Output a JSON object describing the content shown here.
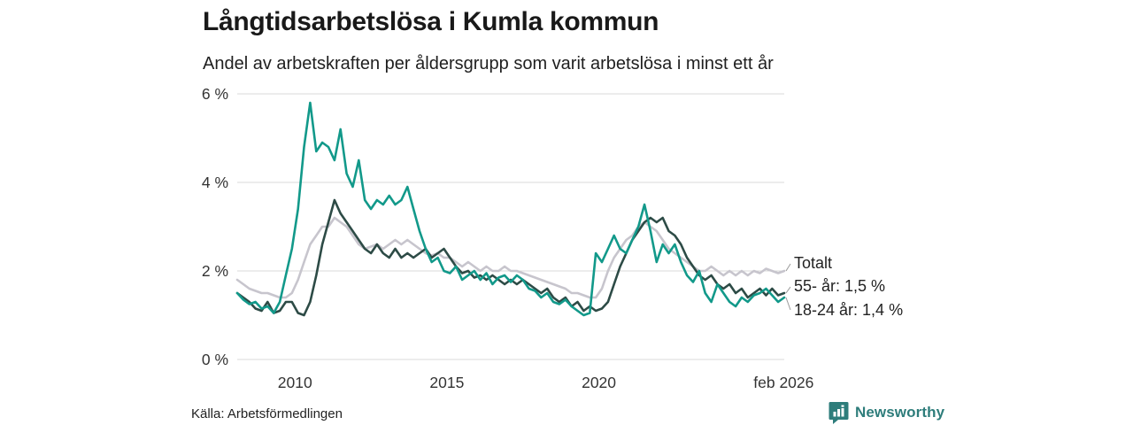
{
  "header": {
    "title": "Långtidsarbetslösa i Kumla kommun",
    "subtitle": "Andel av arbetskraften per åldersgrupp som varit arbetslösa i minst ett år"
  },
  "chart_data": {
    "type": "line",
    "title": "Långtidsarbetslösa i Kumla kommun",
    "subtitle": "Andel av arbetskraften per åldersgrupp som varit arbetslösa i minst ett år",
    "x_unit": "decimal_year",
    "x_start": 2008.1,
    "x_step": 0.2,
    "x_end": 2026.1,
    "ylim": [
      0,
      6
    ],
    "grid": "horizontal",
    "gridline_color": "#d8d8d8",
    "yticks": [
      {
        "value": 0,
        "label": "0 %"
      },
      {
        "value": 2,
        "label": "2 %"
      },
      {
        "value": 4,
        "label": "4 %"
      },
      {
        "value": 6,
        "label": "6 %"
      }
    ],
    "xticks": [
      {
        "value": 2010,
        "label": "2010"
      },
      {
        "value": 2015,
        "label": "2015"
      },
      {
        "value": 2020,
        "label": "2020"
      },
      {
        "value": 2026.08,
        "label": "feb 2026"
      }
    ],
    "legend_position": "right-of-line-ends",
    "series": [
      {
        "name": "Totalt",
        "end_label": "Totalt",
        "color": "#c7c5cd",
        "values": [
          1.8,
          1.7,
          1.6,
          1.55,
          1.5,
          1.5,
          1.45,
          1.4,
          1.4,
          1.5,
          1.8,
          2.2,
          2.6,
          2.8,
          3.0,
          3.0,
          3.2,
          3.1,
          3.0,
          2.8,
          2.6,
          2.5,
          2.55,
          2.6,
          2.5,
          2.6,
          2.7,
          2.6,
          2.7,
          2.6,
          2.5,
          2.4,
          2.35,
          2.4,
          2.3,
          2.3,
          2.2,
          2.1,
          2.2,
          2.1,
          2.0,
          2.1,
          2.0,
          2.0,
          2.1,
          2.0,
          2.0,
          1.95,
          1.9,
          1.85,
          1.8,
          1.75,
          1.7,
          1.65,
          1.6,
          1.5,
          1.5,
          1.45,
          1.4,
          1.4,
          1.6,
          2.0,
          2.3,
          2.5,
          2.7,
          2.8,
          3.0,
          3.1,
          3.0,
          2.9,
          2.7,
          2.5,
          2.4,
          2.3,
          2.2,
          2.1,
          2.0,
          2.0,
          2.1,
          2.0,
          1.9,
          2.0,
          1.9,
          2.0,
          1.9,
          2.0,
          1.95,
          2.05,
          2.0,
          1.95,
          2.0
        ]
      },
      {
        "name": "55- år",
        "end_label": "55- år: 1,5 %",
        "end_value_label": "1,5 %",
        "color": "#2d4b46",
        "values": [
          1.5,
          1.4,
          1.3,
          1.15,
          1.1,
          1.3,
          1.05,
          1.1,
          1.3,
          1.3,
          1.05,
          1.0,
          1.3,
          1.9,
          2.6,
          3.1,
          3.6,
          3.3,
          3.1,
          2.9,
          2.7,
          2.5,
          2.4,
          2.6,
          2.4,
          2.3,
          2.5,
          2.3,
          2.4,
          2.3,
          2.4,
          2.5,
          2.3,
          2.4,
          2.5,
          2.3,
          2.1,
          1.95,
          2.0,
          1.85,
          1.9,
          1.8,
          1.9,
          1.8,
          1.7,
          1.8,
          1.7,
          1.8,
          1.7,
          1.6,
          1.5,
          1.6,
          1.4,
          1.3,
          1.4,
          1.2,
          1.3,
          1.1,
          1.2,
          1.1,
          1.15,
          1.3,
          1.7,
          2.1,
          2.4,
          2.7,
          2.9,
          3.1,
          3.2,
          3.1,
          3.2,
          2.9,
          2.8,
          2.6,
          2.3,
          2.1,
          1.9,
          1.8,
          1.9,
          1.7,
          1.6,
          1.7,
          1.5,
          1.6,
          1.4,
          1.5,
          1.6,
          1.45,
          1.6,
          1.45,
          1.5
        ]
      },
      {
        "name": "18-24 år",
        "end_label": "18-24 år: 1,4 %",
        "end_value_label": "1,4 %",
        "color": "#12998a",
        "values": [
          1.5,
          1.35,
          1.25,
          1.3,
          1.15,
          1.2,
          1.05,
          1.3,
          1.9,
          2.5,
          3.4,
          4.8,
          5.8,
          4.7,
          4.9,
          4.8,
          4.5,
          5.2,
          4.2,
          3.9,
          4.5,
          3.6,
          3.4,
          3.6,
          3.5,
          3.7,
          3.5,
          3.6,
          3.9,
          3.4,
          2.9,
          2.5,
          2.2,
          2.3,
          2.0,
          1.95,
          2.1,
          1.8,
          1.9,
          2.0,
          1.8,
          1.95,
          1.7,
          1.85,
          1.9,
          1.75,
          1.9,
          1.8,
          1.6,
          1.55,
          1.4,
          1.5,
          1.3,
          1.25,
          1.35,
          1.2,
          1.1,
          1.0,
          1.05,
          2.4,
          2.2,
          2.5,
          2.8,
          2.5,
          2.4,
          2.7,
          3.0,
          3.5,
          2.9,
          2.2,
          2.6,
          2.4,
          2.6,
          2.2,
          1.9,
          1.75,
          2.0,
          1.5,
          1.3,
          1.7,
          1.5,
          1.3,
          1.2,
          1.4,
          1.3,
          1.45,
          1.5,
          1.6,
          1.45,
          1.3,
          1.4
        ]
      }
    ]
  },
  "footer": {
    "source": "Källa: Arbetsförmedlingen",
    "brand": "Newsworthy",
    "brand_color": "#2e7d7b"
  }
}
